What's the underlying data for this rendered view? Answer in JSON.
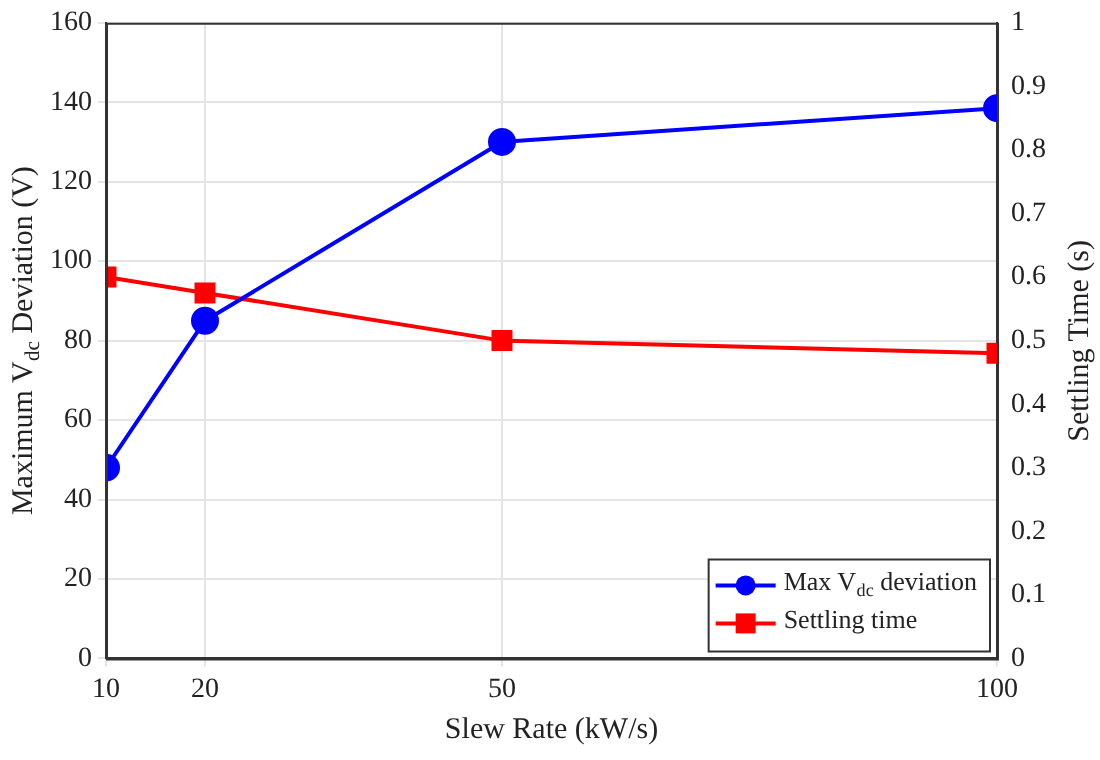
{
  "chart_data": {
    "type": "line",
    "xlabel": "Slew Rate (kW/s)",
    "ylabel": "Maximum V$_{dc}$ Deviation (V)",
    "y2label": "Settling Time (s)",
    "x": [
      10,
      20,
      50,
      100
    ],
    "xlim": [
      10,
      100
    ],
    "xticks": [
      10,
      20,
      50,
      100
    ],
    "ylim": [
      0,
      160
    ],
    "yticks": [
      0,
      20,
      40,
      60,
      80,
      100,
      120,
      140,
      160
    ],
    "y2lim": [
      0,
      1
    ],
    "y2ticks": [
      0,
      0.1,
      0.2,
      0.3,
      0.4,
      0.5,
      0.6,
      0.7,
      0.8,
      0.9,
      1
    ],
    "grid": true,
    "legend": "bottom right",
    "line_style": "solid",
    "series": [
      {
        "name": "Max V$_{dc}$ deviation",
        "color": "#0000ff",
        "marker": "circle",
        "values": [
          48,
          85,
          130,
          138.5
        ]
      },
      {
        "name": "Settling time",
        "color": "#ff0000",
        "marker": "square",
        "axis": "y2",
        "values": [
          0.6,
          0.575,
          0.5,
          0.48
        ]
      }
    ]
  }
}
